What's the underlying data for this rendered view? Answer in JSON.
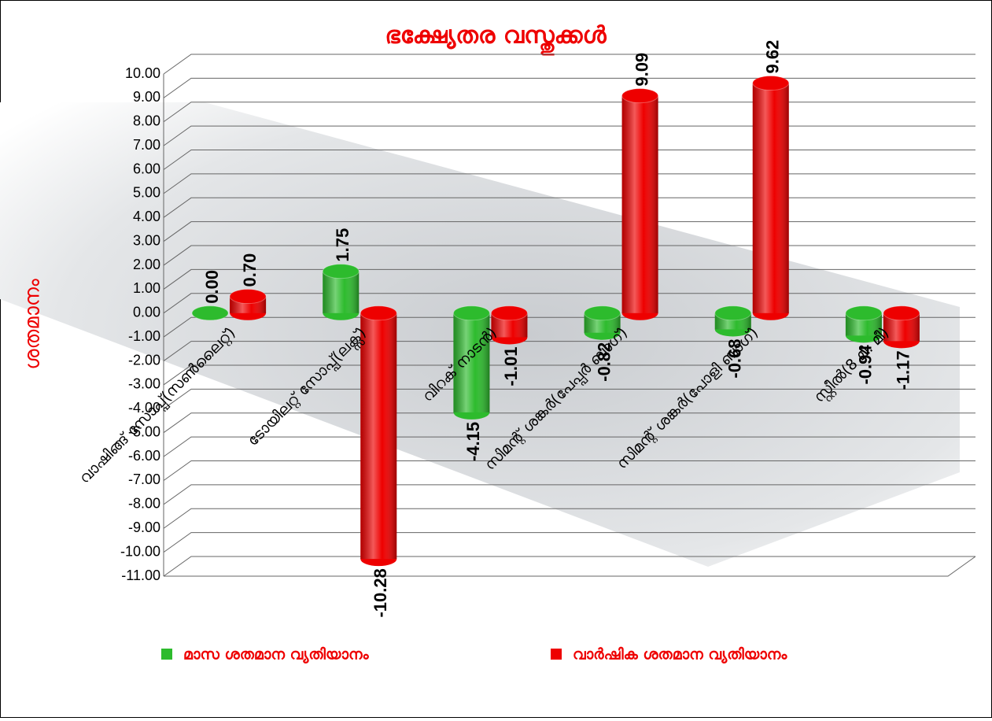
{
  "chart_data": {
    "type": "bar3d",
    "title": "ഭക്ഷ്യേതര വസ്തുക്കൾ",
    "y_label": "ശതമാനം",
    "categories": [
      "വാഷിങ്ങ് സോപ്പ്(സൺലൈറ്റ്)",
      "ടോയിലറ്റ് സോപ്പ്(ലക്സ്)",
      "വിറക് നാടൻ)",
      "സിമന്റ് ശങ്കർ(പേപ്പർ ബാഗ്)",
      "സിമന്റ് ശങ്കർ(പോളി ബാഗ്)",
      "സ്റ്റീൽ(8 മി. മീ)"
    ],
    "series": [
      {
        "name": "മാസ ശതമാന വ്യതിയാനം",
        "color": "#2dbb2d",
        "values": [
          0,
          1.75,
          -4.15,
          -0.82,
          -0.68,
          -0.94
        ],
        "value_labels": [
          "0.00",
          "1.75",
          "-4.15",
          "-0.82",
          "-0.68",
          "-0.94"
        ]
      },
      {
        "name": "വാർഷിക  ശതമാന വ്യതിയാനം",
        "color": "#ee0000",
        "values": [
          0.7,
          -10.28,
          -1.01,
          9.09,
          9.62,
          -1.17
        ],
        "value_labels": [
          "0.70",
          "-10.28",
          "-1.01",
          "9.09",
          "9.62",
          "-1.17"
        ]
      }
    ],
    "ylim": [
      -11,
      10
    ],
    "yticks": [
      {
        "value": -11,
        "label": "-11.00"
      },
      {
        "value": -10,
        "label": "-10.00"
      },
      {
        "value": -9,
        "label": "-9.00"
      },
      {
        "value": -8,
        "label": "-8.00"
      },
      {
        "value": -7,
        "label": "-7.00"
      },
      {
        "value": -6,
        "label": "-6.00"
      },
      {
        "value": -5,
        "label": "-5.00"
      },
      {
        "value": -4,
        "label": "-4.00"
      },
      {
        "value": -3,
        "label": "-3.00"
      },
      {
        "value": -2,
        "label": "-2.00"
      },
      {
        "value": -1,
        "label": "-1.00"
      },
      {
        "value": 0,
        "label": "0.00"
      },
      {
        "value": 1,
        "label": "1.00"
      },
      {
        "value": 2,
        "label": "2.00"
      },
      {
        "value": 3,
        "label": "3.00"
      },
      {
        "value": 4,
        "label": "4.00"
      },
      {
        "value": 5,
        "label": "5.00"
      },
      {
        "value": 6,
        "label": "6.00"
      },
      {
        "value": 7,
        "label": "7.00"
      },
      {
        "value": 8,
        "label": "8.00"
      },
      {
        "value": 9,
        "label": "9.00"
      },
      {
        "value": 10,
        "label": "10.00"
      }
    ],
    "grid": true
  }
}
